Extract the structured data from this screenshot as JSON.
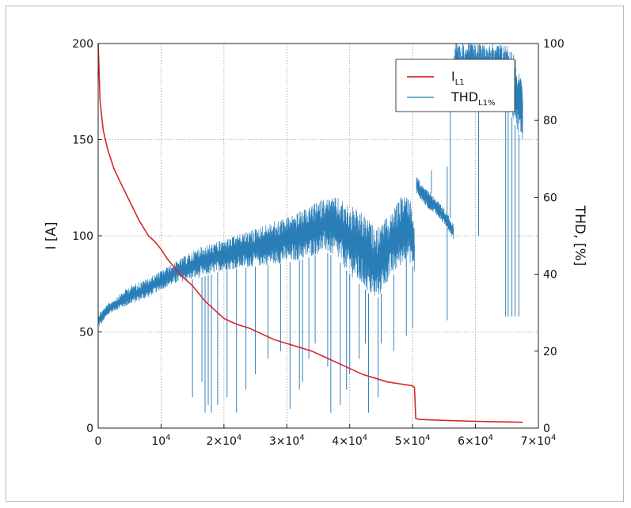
{
  "chart_data": {
    "type": "line",
    "title": "",
    "x_axis": {
      "ticks": [
        0,
        10000,
        20000,
        30000,
        40000,
        50000,
        60000,
        70000
      ],
      "tick_labels": [
        {
          "base": "0",
          "exp": ""
        },
        {
          "base": "10",
          "exp": "4"
        },
        {
          "base": "2×10",
          "exp": "4"
        },
        {
          "base": "3×10",
          "exp": "4"
        },
        {
          "base": "4×10",
          "exp": "4"
        },
        {
          "base": "5×10",
          "exp": "4"
        },
        {
          "base": "6×10",
          "exp": "4"
        },
        {
          "base": "7×10",
          "exp": "4"
        }
      ],
      "range": [
        0,
        70000
      ],
      "label": ""
    },
    "y_left": {
      "label": "I [A]",
      "range": [
        0,
        200
      ],
      "ticks": [
        0,
        50,
        100,
        150,
        200
      ]
    },
    "y_right": {
      "label": "THD, [%]",
      "range": [
        0,
        100
      ],
      "ticks": [
        0,
        20,
        40,
        60,
        80,
        100
      ]
    },
    "grid": true,
    "legend": {
      "position": "top-right",
      "entries": [
        {
          "main": "I",
          "sub": "L1",
          "color": "#d62728",
          "series": "I_L1"
        },
        {
          "main": "THD",
          "sub": "L1%",
          "color": "#1f77b4",
          "series": "THD_L1%"
        }
      ]
    },
    "series": [
      {
        "name": "I_L1",
        "axis": "left",
        "color": "#d62728",
        "x": [
          0,
          300,
          800,
          1500,
          2500,
          3500,
          5000,
          6500,
          8000,
          9000,
          10000,
          11000,
          12000,
          13000,
          14000,
          15000,
          16000,
          17000,
          18000,
          19000,
          20000,
          22000,
          24000,
          26000,
          28000,
          30000,
          32000,
          34000,
          36000,
          38000,
          40000,
          42000,
          44000,
          46000,
          48000,
          50000,
          50300,
          50500,
          51000,
          55000,
          60000,
          65000,
          67500
        ],
        "y": [
          200,
          170,
          155,
          145,
          135,
          128,
          118,
          108,
          100,
          97,
          93,
          88,
          84,
          80,
          77,
          74,
          70,
          66,
          63,
          60,
          57,
          54,
          52,
          49,
          46,
          44,
          42,
          40,
          37,
          34,
          31,
          28,
          26,
          24,
          23,
          22,
          21,
          5,
          4.5,
          4,
          3.5,
          3.2,
          3
        ]
      },
      {
        "name": "THD_L1%",
        "axis": "right",
        "color": "#1f77b4",
        "envelope": {
          "x": [
            0,
            2000,
            5000,
            8000,
            10000,
            13000,
            16000,
            20000,
            25000,
            30000,
            33000,
            36000,
            38000,
            40000,
            41000,
            42000,
            43000,
            44000,
            45000,
            46000,
            47000,
            48000,
            49000,
            50000,
            50300
          ],
          "low": [
            26,
            30,
            32,
            34,
            36,
            38,
            39,
            41,
            42,
            43,
            44,
            46,
            44,
            40,
            38,
            37,
            35,
            33,
            35,
            38,
            40,
            42,
            44,
            42,
            40
          ],
          "high": [
            30,
            33,
            37,
            39,
            41,
            44,
            47,
            49,
            52,
            55,
            57,
            60,
            60,
            58,
            57,
            56,
            54,
            52,
            53,
            55,
            57,
            60,
            62,
            58,
            50
          ]
        },
        "segment2": {
          "x": [
            50600,
            51500,
            52500,
            53500,
            54500,
            55500,
            56500
          ],
          "low": [
            61,
            59,
            57,
            56,
            54,
            52,
            49
          ],
          "high": [
            66,
            63,
            62,
            60,
            58,
            56,
            53
          ]
        },
        "segment3": {
          "x": [
            56600,
            58000,
            60000,
            62000,
            64000,
            65000,
            66000,
            67000,
            67500
          ],
          "low": [
            85,
            87,
            89,
            88,
            86,
            84,
            80,
            76,
            74
          ],
          "high": [
            100,
            100,
            100,
            100,
            100,
            100,
            98,
            92,
            89
          ]
        },
        "spikes": [
          {
            "x": 15000,
            "y": 8
          },
          {
            "x": 16500,
            "y": 12
          },
          {
            "x": 17000,
            "y": 4
          },
          {
            "x": 17500,
            "y": 6
          },
          {
            "x": 18000,
            "y": 4
          },
          {
            "x": 19000,
            "y": 6
          },
          {
            "x": 20500,
            "y": 8
          },
          {
            "x": 22000,
            "y": 4
          },
          {
            "x": 23500,
            "y": 10
          },
          {
            "x": 25000,
            "y": 14
          },
          {
            "x": 27000,
            "y": 18
          },
          {
            "x": 29000,
            "y": 20
          },
          {
            "x": 30500,
            "y": 5
          },
          {
            "x": 32000,
            "y": 10
          },
          {
            "x": 32500,
            "y": 12
          },
          {
            "x": 33500,
            "y": 18
          },
          {
            "x": 34500,
            "y": 22
          },
          {
            "x": 36500,
            "y": 16
          },
          {
            "x": 37000,
            "y": 4
          },
          {
            "x": 38500,
            "y": 6
          },
          {
            "x": 39500,
            "y": 10
          },
          {
            "x": 40000,
            "y": 14
          },
          {
            "x": 41500,
            "y": 18
          },
          {
            "x": 42500,
            "y": 22
          },
          {
            "x": 43000,
            "y": 4
          },
          {
            "x": 44500,
            "y": 8
          },
          {
            "x": 45000,
            "y": 22
          },
          {
            "x": 47000,
            "y": 20
          },
          {
            "x": 49000,
            "y": 24
          },
          {
            "x": 50000,
            "y": 26
          },
          {
            "x": 55500,
            "y": 28
          },
          {
            "x": 60500,
            "y": 50
          },
          {
            "x": 64800,
            "y": 29
          },
          {
            "x": 65200,
            "y": 29
          },
          {
            "x": 65800,
            "y": 29
          },
          {
            "x": 66300,
            "y": 29
          },
          {
            "x": 66900,
            "y": 29
          }
        ],
        "upspikes": [
          {
            "x": 51000,
            "y": 64
          },
          {
            "x": 53000,
            "y": 67
          },
          {
            "x": 55500,
            "y": 68
          },
          {
            "x": 56000,
            "y": 84
          },
          {
            "x": 57000,
            "y": 90
          },
          {
            "x": 58000,
            "y": 92
          },
          {
            "x": 59000,
            "y": 90
          }
        ]
      }
    ]
  }
}
